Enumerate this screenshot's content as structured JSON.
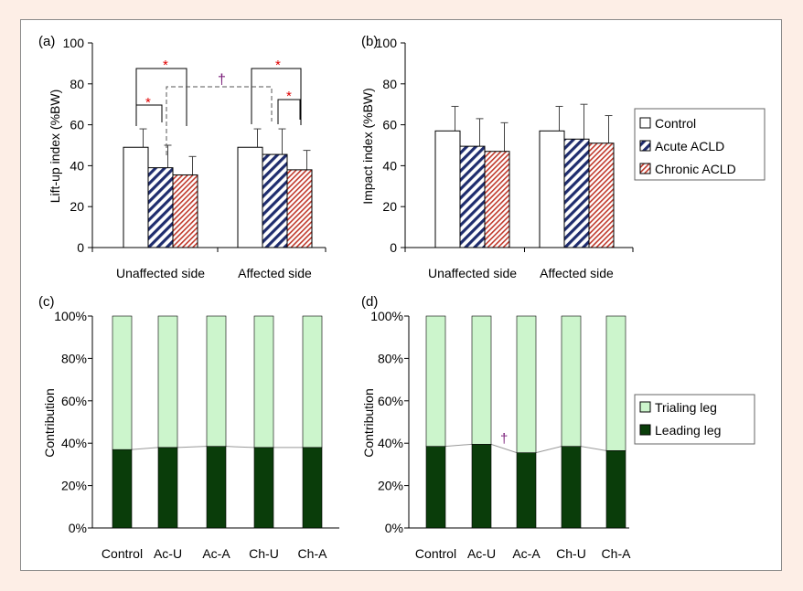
{
  "colors": {
    "background": "#fdeee6",
    "control_fill": "#ffffff",
    "acute_stripe": "#1f2d6e",
    "chronic_stripe": "#c0392b",
    "trialing_leg": "#ccf5cc",
    "leading_leg": "#0a3d0a",
    "significance_star": "#e00000",
    "dagger": "#7a1f7a"
  },
  "chart_data": [
    {
      "panel_label": "(a)",
      "type": "bar",
      "ylabel": "Lift-up index (%BW)",
      "ylim": [
        0,
        100
      ],
      "yticks": [
        "0",
        "20",
        "40",
        "60",
        "80",
        "100"
      ],
      "categories": [
        "Unaffected side",
        "Affected side"
      ],
      "series": [
        {
          "name": "Control",
          "values": [
            49,
            49
          ],
          "errors": [
            9,
            9
          ]
        },
        {
          "name": "Acute ACLD",
          "values": [
            39,
            45.5
          ],
          "errors": [
            11,
            12.5
          ]
        },
        {
          "name": "Chronic ACLD",
          "values": [
            35.5,
            38
          ],
          "errors": [
            9,
            9.5
          ]
        }
      ],
      "significance": {
        "star": "*",
        "dagger": "†"
      }
    },
    {
      "panel_label": "(b)",
      "type": "bar",
      "ylabel": "Impact index (%BW)",
      "ylim": [
        0,
        100
      ],
      "yticks": [
        "0",
        "20",
        "40",
        "60",
        "80",
        "100"
      ],
      "categories": [
        "Unaffected side",
        "Affected side"
      ],
      "series": [
        {
          "name": "Control",
          "values": [
            57,
            57
          ],
          "errors": [
            12,
            12
          ]
        },
        {
          "name": "Acute ACLD",
          "values": [
            49.5,
            53
          ],
          "errors": [
            13.5,
            17
          ]
        },
        {
          "name": "Chronic ACLD",
          "values": [
            47,
            51
          ],
          "errors": [
            14,
            13.5
          ]
        }
      ],
      "legend": {
        "items": [
          "Control",
          "Acute ACLD",
          "Chronic ACLD"
        ],
        "placement": "right"
      }
    },
    {
      "panel_label": "(c)",
      "type": "bar",
      "stacked": true,
      "ylabel": "Contribution",
      "ylim": [
        0,
        100
      ],
      "yticks": [
        "0%",
        "20%",
        "40%",
        "60%",
        "80%",
        "100%"
      ],
      "categories": [
        "Control",
        "Ac-U",
        "Ac-A",
        "Ch-U",
        "Ch-A"
      ],
      "series": [
        {
          "name": "Leading leg",
          "values": [
            37,
            38,
            38.5,
            38,
            38
          ]
        },
        {
          "name": "Trialing leg",
          "values": [
            63,
            62,
            61.5,
            62,
            62
          ]
        }
      ]
    },
    {
      "panel_label": "(d)",
      "type": "bar",
      "stacked": true,
      "ylabel": "Contribution",
      "ylim": [
        0,
        100
      ],
      "yticks": [
        "0%",
        "20%",
        "40%",
        "60%",
        "80%",
        "100%"
      ],
      "categories": [
        "Control",
        "Ac-U",
        "Ac-A",
        "Ch-U",
        "Ch-A"
      ],
      "series": [
        {
          "name": "Leading leg",
          "values": [
            38.5,
            39.5,
            35.5,
            38.5,
            36.5
          ]
        },
        {
          "name": "Trialing leg",
          "values": [
            61.5,
            60.5,
            64.5,
            61.5,
            63.5
          ]
        }
      ],
      "legend": {
        "items": [
          "Trialing leg",
          "Leading leg"
        ],
        "placement": "right"
      },
      "significance": {
        "dagger": "†"
      }
    }
  ]
}
